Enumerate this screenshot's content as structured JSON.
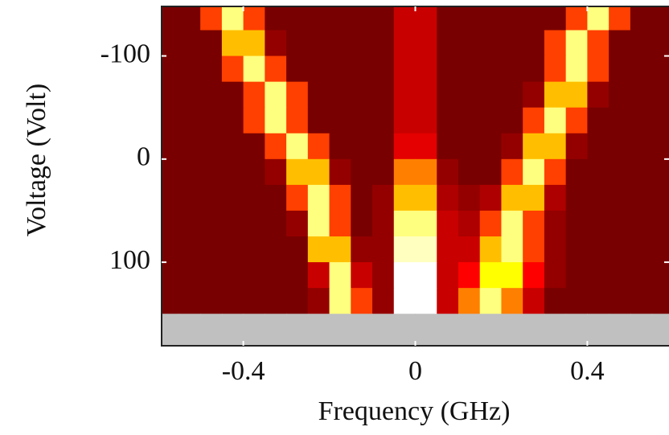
{
  "chart_data": {
    "type": "heatmap",
    "xlabel": "Frequency (GHz)",
    "ylabel": "Voltage  (Volt)",
    "xlim": [
      -0.59,
      0.59
    ],
    "ylim": [
      -148,
      181
    ],
    "y_inverted": true,
    "xticks": [
      -0.4,
      0,
      0.4
    ],
    "yticks": [
      -100,
      0,
      100
    ],
    "colormap": "hot",
    "missing_color": "#c0c0c0",
    "xbins": [
      -0.6,
      -0.55,
      -0.5,
      -0.45,
      -0.4,
      -0.35,
      -0.3,
      -0.25,
      -0.2,
      -0.15,
      -0.1,
      -0.05,
      0,
      0.05,
      0.1,
      0.15,
      0.2,
      0.25,
      0.3,
      0.35,
      0.4,
      0.45,
      0.5,
      0.55,
      0.6
    ],
    "ybins": [
      -150,
      -125,
      -100,
      -75,
      -50,
      -25,
      0,
      25,
      50,
      75,
      100,
      125,
      150,
      185
    ],
    "values": [
      [
        0.15,
        0.15,
        0.5,
        0.9,
        0.5,
        0.15,
        0.15,
        0.15,
        0.15,
        0.15,
        0.15,
        0.3,
        0.3,
        0.15,
        0.15,
        0.15,
        0.15,
        0.15,
        0.15,
        0.5,
        0.9,
        0.5,
        0.15,
        0.15
      ],
      [
        0.15,
        0.15,
        0.15,
        0.7,
        0.7,
        0.2,
        0.15,
        0.15,
        0.15,
        0.15,
        0.15,
        0.3,
        0.3,
        0.15,
        0.15,
        0.15,
        0.15,
        0.15,
        0.5,
        0.9,
        0.5,
        0.15,
        0.15,
        0.15
      ],
      [
        0.15,
        0.15,
        0.15,
        0.5,
        0.9,
        0.5,
        0.15,
        0.15,
        0.15,
        0.15,
        0.15,
        0.3,
        0.3,
        0.15,
        0.15,
        0.15,
        0.15,
        0.15,
        0.5,
        0.9,
        0.5,
        0.15,
        0.15,
        0.15
      ],
      [
        0.15,
        0.15,
        0.15,
        0.15,
        0.5,
        0.9,
        0.5,
        0.15,
        0.15,
        0.15,
        0.15,
        0.3,
        0.3,
        0.15,
        0.15,
        0.15,
        0.15,
        0.2,
        0.7,
        0.7,
        0.2,
        0.15,
        0.15,
        0.15
      ],
      [
        0.15,
        0.15,
        0.15,
        0.15,
        0.5,
        0.9,
        0.5,
        0.15,
        0.15,
        0.15,
        0.15,
        0.3,
        0.3,
        0.15,
        0.15,
        0.15,
        0.15,
        0.5,
        0.9,
        0.5,
        0.15,
        0.15,
        0.15,
        0.15
      ],
      [
        0.15,
        0.15,
        0.15,
        0.15,
        0.15,
        0.5,
        0.9,
        0.5,
        0.15,
        0.15,
        0.15,
        0.35,
        0.35,
        0.15,
        0.15,
        0.15,
        0.2,
        0.7,
        0.7,
        0.2,
        0.15,
        0.15,
        0.15,
        0.15
      ],
      [
        0.15,
        0.15,
        0.15,
        0.15,
        0.15,
        0.2,
        0.7,
        0.7,
        0.2,
        0.15,
        0.15,
        0.6,
        0.6,
        0.2,
        0.15,
        0.15,
        0.5,
        0.9,
        0.5,
        0.15,
        0.15,
        0.15,
        0.15,
        0.15
      ],
      [
        0.15,
        0.15,
        0.15,
        0.15,
        0.15,
        0.15,
        0.5,
        0.9,
        0.5,
        0.15,
        0.2,
        0.7,
        0.7,
        0.25,
        0.2,
        0.25,
        0.7,
        0.7,
        0.25,
        0.15,
        0.15,
        0.15,
        0.15,
        0.15
      ],
      [
        0.15,
        0.15,
        0.15,
        0.15,
        0.15,
        0.15,
        0.2,
        0.9,
        0.5,
        0.15,
        0.2,
        0.9,
        0.9,
        0.3,
        0.25,
        0.5,
        0.9,
        0.5,
        0.2,
        0.15,
        0.15,
        0.15,
        0.15,
        0.15
      ],
      [
        0.15,
        0.15,
        0.15,
        0.15,
        0.15,
        0.15,
        0.15,
        0.7,
        0.7,
        0.2,
        0.2,
        0.95,
        0.95,
        0.3,
        0.3,
        0.7,
        0.9,
        0.5,
        0.2,
        0.15,
        0.15,
        0.15,
        0.15,
        0.15
      ],
      [
        0.15,
        0.15,
        0.15,
        0.15,
        0.15,
        0.15,
        0.15,
        0.3,
        0.9,
        0.3,
        0.2,
        1,
        1,
        0.3,
        0.4,
        0.8,
        0.8,
        0.4,
        0.2,
        0.15,
        0.15,
        0.15,
        0.15,
        0.15
      ],
      [
        0.15,
        0.15,
        0.15,
        0.15,
        0.15,
        0.15,
        0.15,
        0.2,
        0.9,
        0.5,
        0.2,
        1,
        1,
        0.3,
        0.6,
        0.9,
        0.6,
        0.3,
        0.15,
        0.15,
        0.15,
        0.15,
        0.15,
        0.15
      ],
      [
        null,
        null,
        null,
        null,
        null,
        null,
        null,
        null,
        null,
        null,
        null,
        null,
        null,
        null,
        null,
        null,
        null,
        null,
        null,
        null,
        null,
        null,
        null,
        null
      ]
    ]
  }
}
